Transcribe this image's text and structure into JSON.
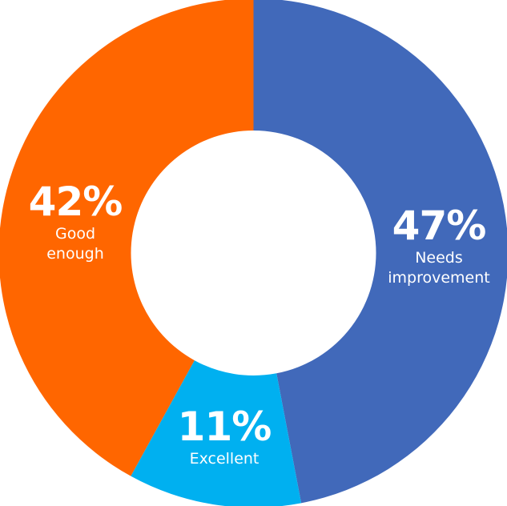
{
  "chart_data": {
    "type": "pie",
    "variant": "donut",
    "title": "",
    "categories": [
      "Needs improvement",
      "Excellent",
      "Good enough"
    ],
    "values": [
      47,
      11,
      42
    ],
    "unit": "%",
    "colors": [
      "#4169BA",
      "#00B0F0",
      "#FF6600"
    ],
    "labels": [
      "47%",
      "11%",
      "42%"
    ],
    "start_angle_deg": 0,
    "direction": "clockwise",
    "legend": "none (inline labels)"
  },
  "slices": [
    {
      "pct": "47%",
      "label_lines": [
        "Needs",
        "improvement"
      ]
    },
    {
      "pct": "11%",
      "label_lines": [
        "Excellent"
      ]
    },
    {
      "pct": "42%",
      "label_lines": [
        "Good",
        "enough"
      ]
    }
  ]
}
